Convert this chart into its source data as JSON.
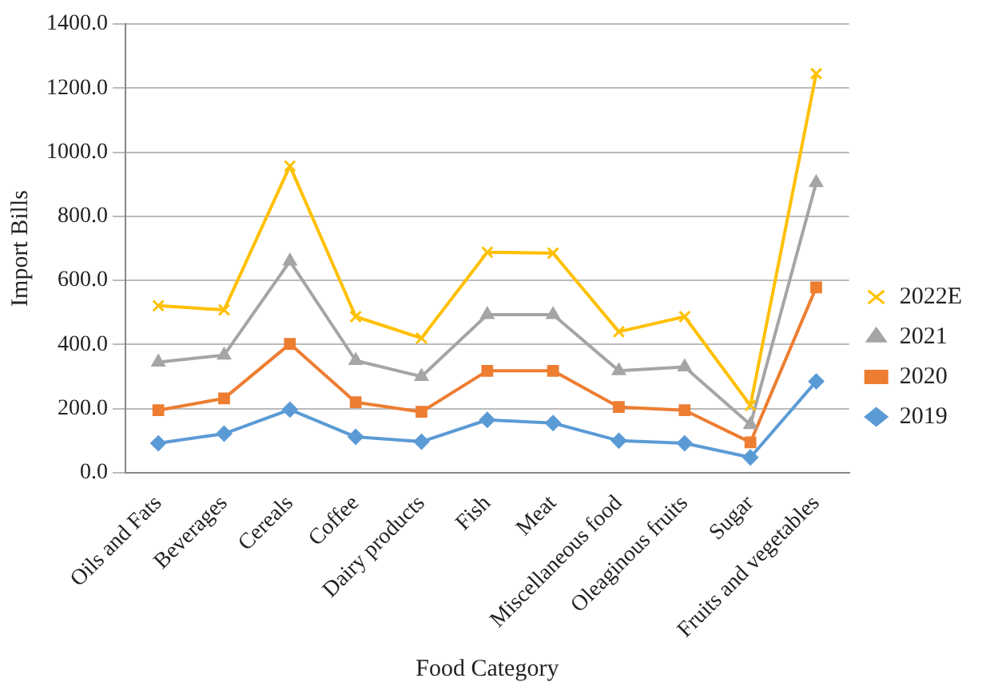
{
  "chart_data": {
    "type": "line",
    "xlabel": "Food Category",
    "ylabel": "Import Bills",
    "categories": [
      "Oils and Fats",
      "Beverages",
      "Cereals",
      "Coffee",
      "Dairy products",
      "Fish",
      "Meat",
      "Miscellaneous food",
      "Oleaginous fruits",
      "Sugar",
      "Fruits and vegetables"
    ],
    "series": [
      {
        "name": "2022E",
        "color": "#ffc000",
        "marker": "cross",
        "values": [
          521,
          508,
          957,
          487,
          420,
          688,
          685,
          440,
          487,
          210,
          1245
        ]
      },
      {
        "name": "2021",
        "color": "#a5a5a5",
        "marker": "triangle",
        "values": [
          345,
          367,
          660,
          350,
          300,
          493,
          493,
          318,
          330,
          150,
          905
        ]
      },
      {
        "name": "2020",
        "color": "#ed7d31",
        "marker": "square",
        "values": [
          195,
          232,
          402,
          220,
          190,
          318,
          318,
          205,
          195,
          95,
          578
        ]
      },
      {
        "name": "2019",
        "color": "#5b9bd5",
        "marker": "diamond",
        "values": [
          92,
          122,
          197,
          112,
          97,
          165,
          155,
          100,
          92,
          48,
          285
        ]
      }
    ],
    "ylim": [
      0,
      1400
    ],
    "yticks": [
      {
        "value": 0,
        "label": "0.0"
      },
      {
        "value": 200,
        "label": "200.0"
      },
      {
        "value": 400,
        "label": "400.0"
      },
      {
        "value": 600,
        "label": "600.0"
      },
      {
        "value": 800,
        "label": "800.0"
      },
      {
        "value": 1000,
        "label": "1000.0"
      },
      {
        "value": 1200,
        "label": "1200.0"
      },
      {
        "value": 1400,
        "label": "1400.0"
      }
    ],
    "grid": "y",
    "legend": "right",
    "line_style": "solid"
  }
}
